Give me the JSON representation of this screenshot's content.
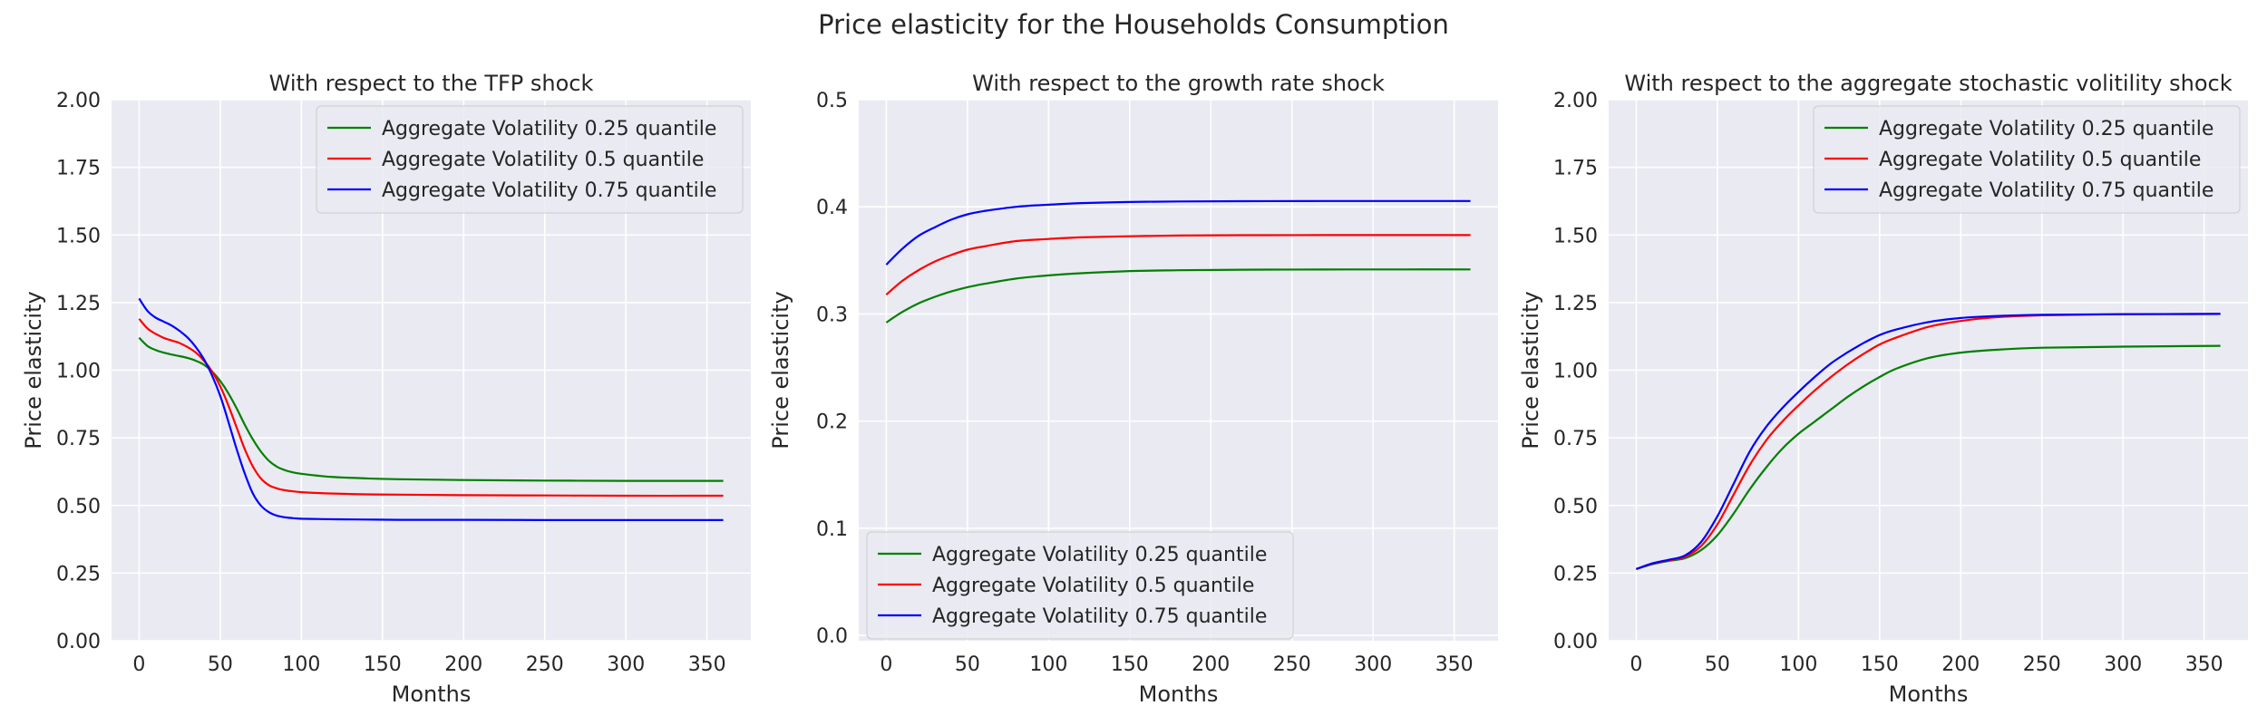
{
  "figure_title": "Price elasticity for the Households Consumption",
  "chart_data": [
    {
      "type": "line",
      "title": "With respect to the TFP shock",
      "xlabel": "Months",
      "ylabel": "Price elasticity",
      "xlim": [
        -17,
        377
      ],
      "ylim": [
        0,
        2.0
      ],
      "xticks": [
        0,
        50,
        100,
        150,
        200,
        250,
        300,
        350
      ],
      "yticks": [
        0.0,
        0.25,
        0.5,
        0.75,
        1.0,
        1.25,
        1.5,
        1.75,
        2.0
      ],
      "ytick_labels": [
        "0.00",
        "0.25",
        "0.50",
        "0.75",
        "1.00",
        "1.25",
        "1.50",
        "1.75",
        "2.00"
      ],
      "grid": true,
      "legend_loc": "upper right",
      "x": [
        0,
        5,
        10,
        15,
        20,
        25,
        30,
        35,
        40,
        45,
        50,
        55,
        60,
        65,
        70,
        75,
        80,
        85,
        90,
        95,
        100,
        110,
        120,
        140,
        160,
        200,
        250,
        300,
        360
      ],
      "series": [
        {
          "name": "Aggregate Volatility 0.25 quantile",
          "color": "#008000",
          "values": [
            1.12,
            1.09,
            1.075,
            1.065,
            1.058,
            1.052,
            1.045,
            1.035,
            1.02,
            0.995,
            0.96,
            0.915,
            0.86,
            0.8,
            0.745,
            0.7,
            0.665,
            0.643,
            0.63,
            0.622,
            0.617,
            0.61,
            0.605,
            0.6,
            0.597,
            0.594,
            0.592,
            0.591,
            0.591
          ]
        },
        {
          "name": "Aggregate Volatility 0.5 quantile",
          "color": "#ff0000",
          "values": [
            1.19,
            1.155,
            1.135,
            1.12,
            1.11,
            1.1,
            1.085,
            1.065,
            1.035,
            0.995,
            0.94,
            0.87,
            0.79,
            0.71,
            0.645,
            0.6,
            0.575,
            0.563,
            0.556,
            0.552,
            0.549,
            0.546,
            0.544,
            0.541,
            0.54,
            0.538,
            0.537,
            0.536,
            0.536
          ]
        },
        {
          "name": "Aggregate Volatility 0.75 quantile",
          "color": "#0000ff",
          "values": [
            1.265,
            1.22,
            1.195,
            1.18,
            1.165,
            1.145,
            1.12,
            1.085,
            1.04,
            0.98,
            0.905,
            0.81,
            0.71,
            0.62,
            0.545,
            0.5,
            0.475,
            0.462,
            0.456,
            0.453,
            0.451,
            0.45,
            0.449,
            0.448,
            0.447,
            0.447,
            0.446,
            0.446,
            0.446
          ]
        }
      ]
    },
    {
      "type": "line",
      "title": "With respect to the growth rate shock",
      "xlabel": "Months",
      "ylabel": "Price elasticity",
      "xlim": [
        -17,
        377
      ],
      "ylim": [
        -0.005,
        0.5
      ],
      "xticks": [
        0,
        50,
        100,
        150,
        200,
        250,
        300,
        350
      ],
      "yticks": [
        0.0,
        0.1,
        0.2,
        0.3,
        0.4,
        0.5
      ],
      "ytick_labels": [
        "0.0",
        "0.1",
        "0.2",
        "0.3",
        "0.4",
        "0.5"
      ],
      "grid": true,
      "legend_loc": "lower left",
      "x": [
        0,
        10,
        20,
        30,
        40,
        50,
        60,
        80,
        100,
        120,
        150,
        180,
        220,
        270,
        320,
        360
      ],
      "series": [
        {
          "name": "Aggregate Volatility 0.25 quantile",
          "color": "#008000",
          "values": [
            0.292,
            0.302,
            0.31,
            0.316,
            0.321,
            0.325,
            0.328,
            0.333,
            0.336,
            0.338,
            0.34,
            0.3408,
            0.3413,
            0.3415,
            0.3416,
            0.3416
          ]
        },
        {
          "name": "Aggregate Volatility 0.5 quantile",
          "color": "#ff0000",
          "values": [
            0.318,
            0.331,
            0.341,
            0.349,
            0.355,
            0.36,
            0.363,
            0.368,
            0.37,
            0.3715,
            0.3725,
            0.3732,
            0.3735,
            0.3736,
            0.3736,
            0.3736
          ]
        },
        {
          "name": "Aggregate Volatility 0.75 quantile",
          "color": "#0000ff",
          "values": [
            0.346,
            0.361,
            0.373,
            0.381,
            0.388,
            0.393,
            0.396,
            0.4,
            0.402,
            0.4035,
            0.4045,
            0.405,
            0.4053,
            0.4054,
            0.4054,
            0.4054
          ]
        }
      ]
    },
    {
      "type": "line",
      "title": "With respect to the aggregate stochastic volitility shock",
      "xlabel": "Months",
      "ylabel": "Price elasticity",
      "xlim": [
        -17,
        377
      ],
      "ylim": [
        0,
        2.0
      ],
      "xticks": [
        0,
        50,
        100,
        150,
        200,
        250,
        300,
        350
      ],
      "yticks": [
        0.0,
        0.25,
        0.5,
        0.75,
        1.0,
        1.25,
        1.5,
        1.75,
        2.0
      ],
      "ytick_labels": [
        "0.00",
        "0.25",
        "0.50",
        "0.75",
        "1.00",
        "1.25",
        "1.50",
        "1.75",
        "2.00"
      ],
      "grid": true,
      "legend_loc": "upper right",
      "x": [
        0,
        10,
        20,
        30,
        40,
        50,
        60,
        70,
        80,
        90,
        100,
        110,
        120,
        130,
        140,
        150,
        160,
        180,
        200,
        220,
        250,
        300,
        360
      ],
      "series": [
        {
          "name": "Aggregate Volatility 0.25 quantile",
          "color": "#008000",
          "values": [
            0.265,
            0.283,
            0.295,
            0.305,
            0.335,
            0.39,
            0.47,
            0.56,
            0.64,
            0.71,
            0.765,
            0.81,
            0.855,
            0.9,
            0.94,
            0.975,
            1.005,
            1.045,
            1.065,
            1.075,
            1.083,
            1.087,
            1.09
          ]
        },
        {
          "name": "Aggregate Volatility 0.5 quantile",
          "color": "#ff0000",
          "values": [
            0.265,
            0.285,
            0.297,
            0.31,
            0.35,
            0.43,
            0.54,
            0.65,
            0.74,
            0.81,
            0.87,
            0.925,
            0.975,
            1.02,
            1.06,
            1.095,
            1.12,
            1.16,
            1.182,
            1.195,
            1.203,
            1.207,
            1.208
          ]
        },
        {
          "name": "Aggregate Volatility 0.75 quantile",
          "color": "#0000ff",
          "values": [
            0.265,
            0.286,
            0.299,
            0.315,
            0.365,
            0.46,
            0.58,
            0.7,
            0.79,
            0.86,
            0.92,
            0.975,
            1.025,
            1.065,
            1.1,
            1.13,
            1.15,
            1.178,
            1.193,
            1.2,
            1.205,
            1.207,
            1.208
          ]
        }
      ]
    }
  ]
}
